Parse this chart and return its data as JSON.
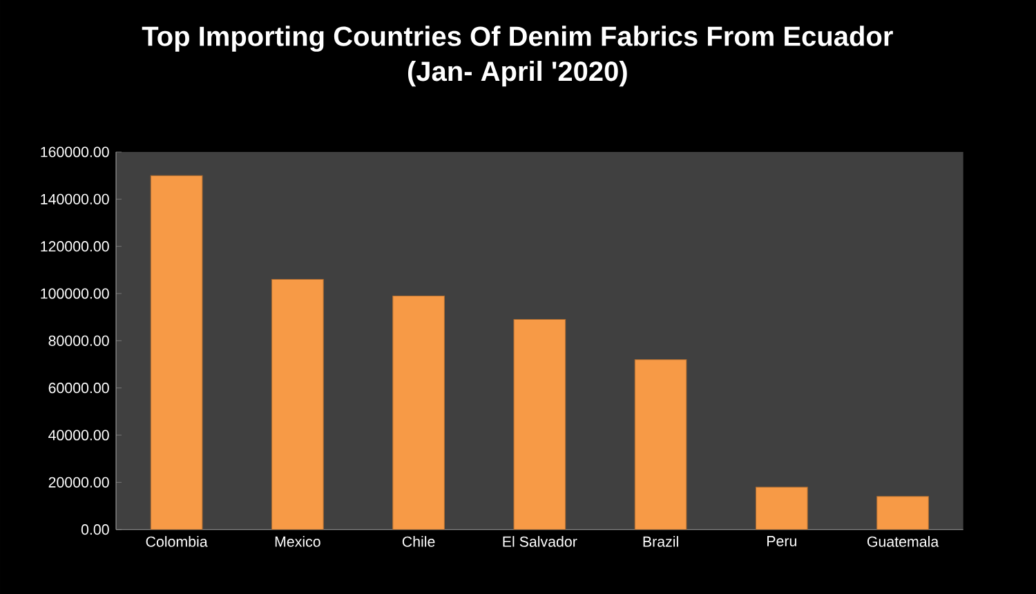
{
  "chart_data": {
    "type": "bar",
    "title": "Top Importing Countries Of Denim Fabrics From Ecuador",
    "subtitle": "(Jan- April '2020)",
    "categories": [
      "Colombia",
      "Mexico",
      "Chile",
      "El Salvador",
      "Brazil",
      "Peru",
      "Guatemala"
    ],
    "values": [
      150000,
      106000,
      99000,
      89000,
      72000,
      18000,
      14000
    ],
    "color": "#f79a46",
    "ylim": [
      0,
      160000
    ],
    "yticks": [
      {
        "value": 0,
        "label": "0.00"
      },
      {
        "value": 20000,
        "label": "20000.00"
      },
      {
        "value": 40000,
        "label": "40000.00"
      },
      {
        "value": 60000,
        "label": "60000.00"
      },
      {
        "value": 80000,
        "label": "80000.00"
      },
      {
        "value": 100000,
        "label": "100000.00"
      },
      {
        "value": 120000,
        "label": "120000.00"
      },
      {
        "value": 140000,
        "label": "140000.00"
      },
      {
        "value": 160000,
        "label": "160000.00"
      }
    ]
  }
}
